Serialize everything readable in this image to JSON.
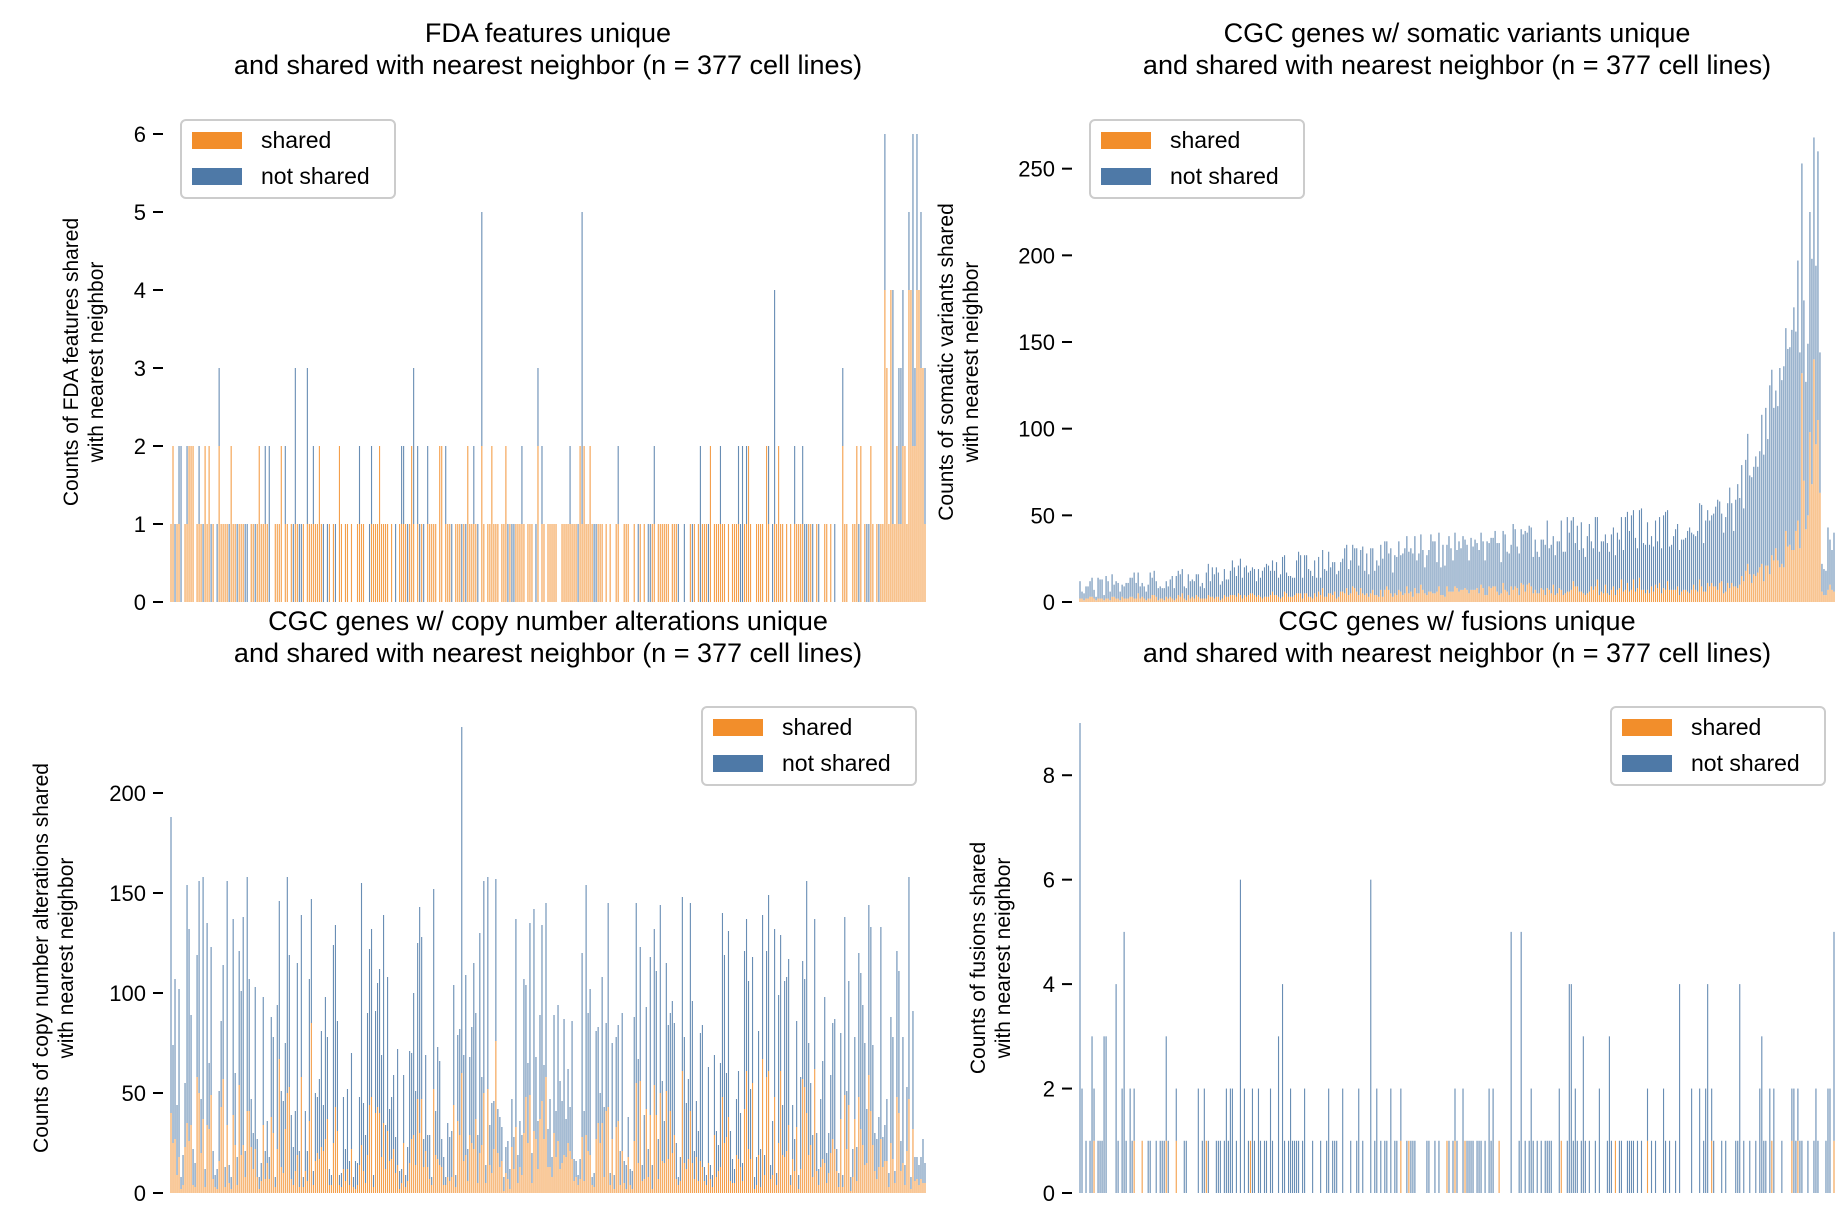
{
  "colors": {
    "shared": "#f28e2b",
    "not_shared": "#4e79a7",
    "legend_border": "#cccccc"
  },
  "legend": {
    "shared": "shared",
    "not_shared": "not shared"
  },
  "chart_data": [
    {
      "type": "bar",
      "stacked": true,
      "title": [
        "FDA features unique",
        "and shared with nearest neighbor (n = 377 cell lines)"
      ],
      "ylabel": [
        "Counts of FDA features shared",
        "with nearest neighbor"
      ],
      "n_bars": 377,
      "ylim": [
        0,
        6
      ],
      "yticks": [
        0,
        1,
        2,
        3,
        4,
        5,
        6
      ],
      "legend_position": "top-left",
      "x_ticks_visible": false,
      "series": [
        {
          "name": "shared",
          "description": "Mostly 0-1 per cell line, rising to 2-4 for the last cell lines"
        },
        {
          "name": "not shared",
          "description": "Mostly 0-1 per cell line with occasional 2-5; maximum 6 at the end"
        }
      ]
    },
    {
      "type": "bar",
      "stacked": true,
      "title": [
        "CGC genes w/ somatic variants unique",
        "and shared with nearest neighbor (n = 377 cell lines)"
      ],
      "ylabel": [
        "Counts of somatic variants shared",
        "with nearest neighbor"
      ],
      "n_bars": 377,
      "ylim": [
        0,
        270
      ],
      "yticks": [
        0,
        50,
        100,
        150,
        200,
        250
      ],
      "legend_position": "top-left",
      "x_ticks_visible": false,
      "series": [
        {
          "name": "shared",
          "description": "Small values (about 2-15), rising to about 140 near the end"
        },
        {
          "name": "not shared",
          "description": "Increasing trend from about 10 to about 50, sharp rise to about 268 near the end"
        }
      ]
    },
    {
      "type": "bar",
      "stacked": true,
      "title": [
        "CGC genes w/ copy number alterations unique",
        "and shared with nearest neighbor (n = 377 cell lines)"
      ],
      "ylabel": [
        "Counts of copy number alterations shared",
        "with nearest neighbor"
      ],
      "n_bars": 377,
      "ylim": [
        0,
        235
      ],
      "yticks": [
        0,
        50,
        100,
        150,
        200
      ],
      "legend_position": "top-right",
      "x_ticks_visible": false,
      "series": [
        {
          "name": "shared",
          "description": "Typically 5-40, occasionally up to about 85"
        },
        {
          "name": "not shared",
          "description": "Highly variable 10-180 totals; maximum about 233"
        }
      ]
    },
    {
      "type": "bar",
      "stacked": true,
      "title": [
        "CGC genes w/ fusions unique",
        "and shared with nearest neighbor (n = 377 cell lines)"
      ],
      "ylabel": [
        "Counts of fusions shared",
        "with nearest neighbor"
      ],
      "n_bars": 377,
      "ylim": [
        0,
        9
      ],
      "yticks": [
        0,
        2,
        4,
        6,
        8
      ],
      "legend_position": "top-right",
      "x_ticks_visible": false,
      "series": [
        {
          "name": "shared",
          "description": "Mostly 0, occasionally 1-2"
        },
        {
          "name": "not shared",
          "description": "Mostly 0-2, occasionally 3-6; maximum 9 at the first cell line"
        }
      ]
    }
  ]
}
